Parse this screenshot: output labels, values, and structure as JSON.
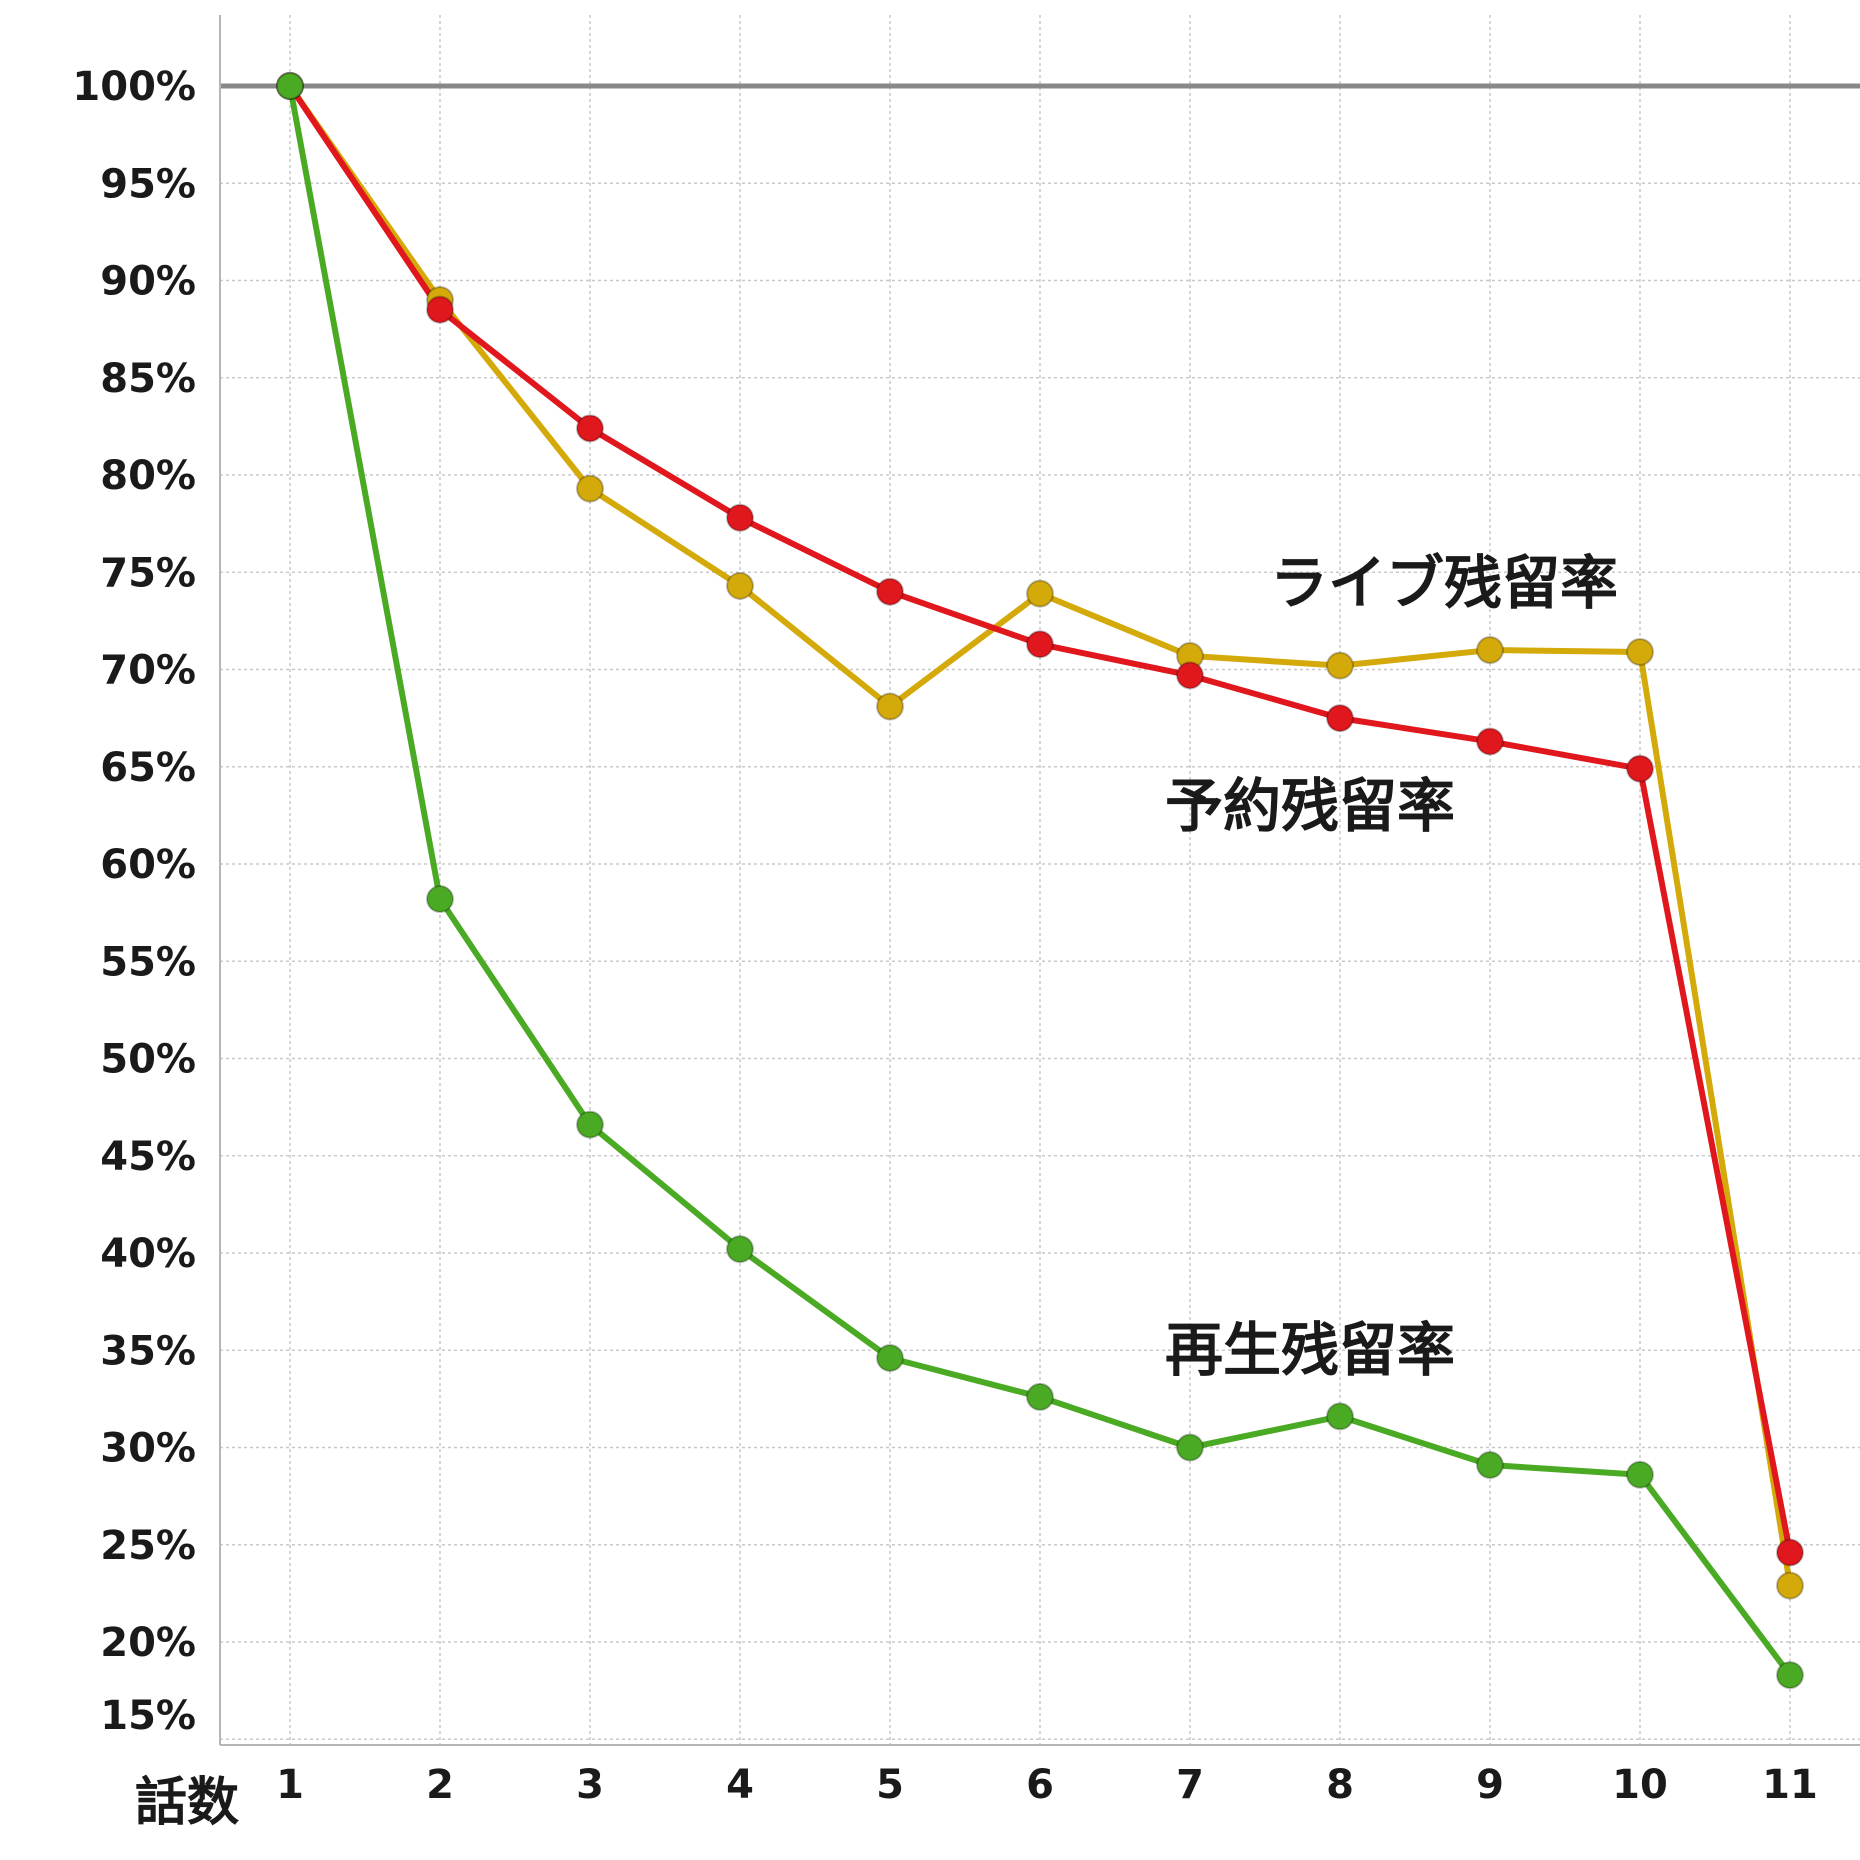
{
  "chart_data": {
    "type": "line",
    "xlabel": "話数",
    "ylabel": "",
    "categories": [
      "1",
      "2",
      "3",
      "4",
      "5",
      "6",
      "7",
      "8",
      "9",
      "10",
      "11"
    ],
    "ylim": [
      15,
      100
    ],
    "yticks": [
      "100%",
      "95%",
      "90%",
      "85%",
      "80%",
      "75%",
      "70%",
      "65%",
      "60%",
      "55%",
      "50%",
      "45%",
      "40%",
      "35%",
      "30%",
      "25%",
      "20%",
      "15%"
    ],
    "ytick_values": [
      100,
      95,
      90,
      85,
      80,
      75,
      70,
      65,
      60,
      55,
      50,
      45,
      40,
      35,
      30,
      25,
      20,
      15
    ],
    "grid": true,
    "reference_line": 100,
    "series": [
      {
        "name": "ライブ残留率",
        "color": "#d4a90a",
        "values": [
          100,
          89,
          79.3,
          74.3,
          68.1,
          73.9,
          70.7,
          70.2,
          71.0,
          70.9,
          22.9
        ]
      },
      {
        "name": "予約残留率",
        "color": "#e0171d",
        "values": [
          100,
          88.5,
          82.4,
          77.8,
          74.0,
          71.3,
          69.7,
          67.5,
          66.3,
          64.9,
          24.6
        ]
      },
      {
        "name": "再生残留率",
        "color": "#4aaa24",
        "values": [
          100,
          58.2,
          46.6,
          40.2,
          34.6,
          32.6,
          30.0,
          31.6,
          29.1,
          28.6,
          18.3
        ]
      }
    ]
  }
}
